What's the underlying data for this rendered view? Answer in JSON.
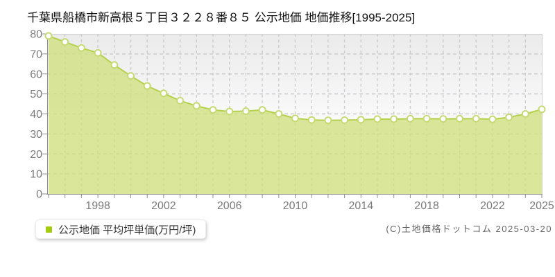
{
  "header": {
    "title": "千葉県船橋市新高根５丁目３２２８番８５ 公示地価 地価推移[1995-2025]"
  },
  "legend": {
    "label": "公示地価 平均坪単価(万円/坪)",
    "marker_color": "#a4cb10"
  },
  "footer": {
    "copyright": "(C)土地価格ドットコム 2025-03-20"
  },
  "chart_data": {
    "type": "area",
    "title": "千葉県船橋市新高根５丁目３２２８番８５ 公示地価 地価推移[1995-2025]",
    "x": [
      1995,
      1996,
      1997,
      1998,
      1999,
      2000,
      2001,
      2002,
      2003,
      2004,
      2005,
      2006,
      2007,
      2008,
      2009,
      2010,
      2011,
      2012,
      2013,
      2014,
      2015,
      2016,
      2017,
      2018,
      2019,
      2020,
      2021,
      2022,
      2023,
      2024,
      2025
    ],
    "series": [
      {
        "name": "公示地価 平均坪単価(万円/坪)",
        "values": [
          79,
          76,
          73,
          70.5,
          64.5,
          59,
          54,
          50.3,
          46.6,
          44,
          42,
          41.2,
          41.4,
          42,
          40,
          37.8,
          37,
          36.8,
          36.9,
          37.1,
          37.4,
          37.4,
          37.6,
          37.6,
          37.5,
          37.6,
          37.6,
          37.3,
          38.3,
          40,
          42.3
        ]
      }
    ],
    "xlabel": "",
    "ylabel": "平均坪単価(万円/坪)",
    "ylim": [
      0,
      80
    ],
    "ytick_interval": 10,
    "ytick_labels": [
      "0",
      "10",
      "20",
      "30",
      "40",
      "50",
      "60",
      "70",
      "80"
    ],
    "xtick_labels": [
      "1998",
      "2002",
      "2006",
      "2010",
      "2014",
      "2018",
      "2022",
      "2025"
    ],
    "grid": true,
    "legend_position": "bottom-left",
    "colors": {
      "line": "#b5d04c",
      "area_fill": "#cfe07e",
      "area_fill_effective": "#d9e698",
      "marker_fill": "#ffffff",
      "marker_stroke": "#c6da74",
      "legend_marker": "#a4cb10",
      "grid_line": "#cbcbcb",
      "axis_line": "#8c8c8c",
      "tick_label": "#7a7a7a",
      "plot_bg_top": "#ebebec",
      "plot_bg_bottom": "#ffffff"
    }
  }
}
